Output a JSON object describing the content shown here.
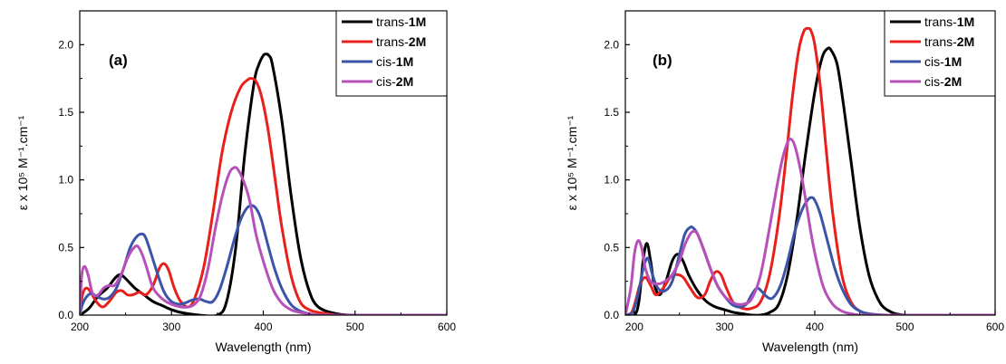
{
  "chart_data": [
    {
      "type": "line",
      "panel_label": "(a)",
      "xlabel": "Wavelength (nm)",
      "ylabel": "ε x 10⁵ M⁻¹.cm⁻¹",
      "xlim": [
        200,
        600
      ],
      "ylim": [
        0,
        2.25
      ],
      "xticks": [
        "200",
        "300",
        "400",
        "500",
        "600"
      ],
      "yticks": [
        "0.0",
        "0.5",
        "1.0",
        "1.5",
        "2.0"
      ],
      "grid": false,
      "legend_position": "top-right",
      "series": [
        {
          "name_prefix": "trans-",
          "name_suffix": "1M",
          "color": "#000000",
          "x": [
            200,
            210,
            220,
            230,
            238,
            244,
            250,
            260,
            270,
            280,
            290,
            300,
            310,
            330,
            350,
            360,
            370,
            380,
            390,
            395,
            400,
            403,
            406,
            410,
            420,
            430,
            440,
            450,
            460,
            480,
            500,
            550,
            600
          ],
          "y": [
            0.0,
            0.05,
            0.14,
            0.2,
            0.27,
            0.3,
            0.27,
            0.2,
            0.15,
            0.1,
            0.07,
            0.04,
            0.02,
            0.0,
            0.0,
            0.1,
            0.5,
            1.2,
            1.72,
            1.85,
            1.92,
            1.93,
            1.92,
            1.85,
            1.45,
            0.9,
            0.45,
            0.18,
            0.06,
            0.01,
            0.0,
            0.0,
            0.0
          ]
        },
        {
          "name_prefix": "trans-",
          "name_suffix": "2M",
          "color": "#e8201c",
          "x": [
            200,
            203,
            207,
            212,
            218,
            225,
            232,
            240,
            246,
            252,
            258,
            265,
            272,
            280,
            287,
            292,
            297,
            303,
            310,
            318,
            325,
            335,
            345,
            355,
            365,
            375,
            383,
            387,
            392,
            398,
            405,
            413,
            420,
            430,
            440,
            450,
            460,
            470,
            480,
            500,
            550,
            600
          ],
          "y": [
            0.0,
            0.15,
            0.2,
            0.17,
            0.1,
            0.06,
            0.1,
            0.17,
            0.18,
            0.15,
            0.15,
            0.17,
            0.15,
            0.22,
            0.35,
            0.38,
            0.33,
            0.2,
            0.1,
            0.06,
            0.12,
            0.35,
            0.75,
            1.2,
            1.5,
            1.68,
            1.74,
            1.75,
            1.73,
            1.62,
            1.38,
            1.0,
            0.66,
            0.3,
            0.1,
            0.04,
            0.02,
            0.01,
            0.0,
            0.0,
            0.0,
            0.0
          ]
        },
        {
          "name_prefix": "cis-",
          "name_suffix": "1M",
          "color": "#3b54a8",
          "x": [
            200,
            203,
            208,
            213,
            218,
            225,
            232,
            240,
            248,
            255,
            262,
            268,
            272,
            278,
            285,
            292,
            300,
            308,
            315,
            322,
            330,
            338,
            345,
            352,
            360,
            368,
            375,
            382,
            388,
            393,
            398,
            405,
            412,
            420,
            430,
            440,
            450,
            460,
            480,
            500,
            550,
            600
          ],
          "y": [
            0.0,
            0.08,
            0.14,
            0.16,
            0.14,
            0.12,
            0.13,
            0.2,
            0.35,
            0.5,
            0.58,
            0.6,
            0.57,
            0.45,
            0.3,
            0.17,
            0.1,
            0.08,
            0.09,
            0.11,
            0.12,
            0.1,
            0.1,
            0.18,
            0.35,
            0.55,
            0.7,
            0.79,
            0.81,
            0.78,
            0.7,
            0.52,
            0.35,
            0.2,
            0.08,
            0.03,
            0.01,
            0.0,
            0.0,
            0.0,
            0.0,
            0.0
          ]
        },
        {
          "name_prefix": "cis-",
          "name_suffix": "2M",
          "color": "#b751b9",
          "x": [
            200,
            202,
            205,
            209,
            214,
            220,
            226,
            232,
            238,
            245,
            252,
            258,
            263,
            268,
            273,
            280,
            290,
            300,
            310,
            318,
            325,
            332,
            340,
            348,
            356,
            363,
            368,
            372,
            378,
            385,
            392,
            400,
            410,
            420,
            430,
            440,
            450,
            460,
            480,
            500,
            550,
            600
          ],
          "y": [
            0.0,
            0.28,
            0.36,
            0.3,
            0.16,
            0.15,
            0.2,
            0.22,
            0.22,
            0.3,
            0.42,
            0.49,
            0.51,
            0.45,
            0.35,
            0.2,
            0.12,
            0.08,
            0.06,
            0.06,
            0.08,
            0.15,
            0.35,
            0.65,
            0.9,
            1.05,
            1.09,
            1.08,
            1.0,
            0.85,
            0.6,
            0.4,
            0.2,
            0.09,
            0.04,
            0.02,
            0.01,
            0.0,
            0.0,
            0.0,
            0.0,
            0.0
          ]
        }
      ]
    },
    {
      "type": "line",
      "panel_label": "(b)",
      "xlabel": "Wavelength (nm)",
      "ylabel": "ε x 10⁵ M⁻¹.cm⁻¹",
      "xlim": [
        190,
        600
      ],
      "ylim": [
        0,
        2.25
      ],
      "xticks": [
        "200",
        "300",
        "400",
        "500",
        "600"
      ],
      "yticks": [
        "0.0",
        "0.5",
        "1.0",
        "1.5",
        "2.0"
      ],
      "grid": false,
      "legend_position": "top-right",
      "series": [
        {
          "name_prefix": "trans-",
          "name_suffix": "1M",
          "color": "#000000",
          "x": [
            190,
            200,
            205,
            210,
            214,
            218,
            222,
            228,
            235,
            242,
            248,
            254,
            260,
            270,
            280,
            290,
            300,
            310,
            320,
            330,
            340,
            350,
            360,
            370,
            380,
            390,
            400,
            408,
            414,
            418,
            425,
            432,
            440,
            450,
            460,
            470,
            480,
            500,
            550,
            600
          ],
          "y": [
            0.0,
            0.0,
            0.1,
            0.42,
            0.53,
            0.4,
            0.23,
            0.15,
            0.25,
            0.4,
            0.45,
            0.4,
            0.3,
            0.18,
            0.1,
            0.06,
            0.04,
            0.02,
            0.01,
            0.0,
            0.0,
            0.02,
            0.08,
            0.3,
            0.7,
            1.2,
            1.65,
            1.9,
            1.97,
            1.96,
            1.85,
            1.55,
            1.15,
            0.65,
            0.3,
            0.12,
            0.04,
            0.0,
            0.0,
            0.0
          ]
        },
        {
          "name_prefix": "trans-",
          "name_suffix": "2M",
          "color": "#e8201c",
          "x": [
            190,
            197,
            202,
            206,
            212,
            218,
            224,
            232,
            240,
            247,
            254,
            262,
            270,
            278,
            284,
            290,
            296,
            302,
            310,
            320,
            330,
            340,
            350,
            360,
            368,
            375,
            382,
            388,
            393,
            396,
            400,
            406,
            413,
            420,
            430,
            440,
            450,
            460,
            470,
            500,
            550,
            600
          ],
          "y": [
            0.0,
            0.02,
            0.12,
            0.22,
            0.28,
            0.22,
            0.15,
            0.2,
            0.28,
            0.3,
            0.28,
            0.2,
            0.13,
            0.15,
            0.25,
            0.32,
            0.3,
            0.2,
            0.09,
            0.05,
            0.05,
            0.1,
            0.3,
            0.7,
            1.15,
            1.6,
            1.95,
            2.1,
            2.12,
            2.1,
            2.0,
            1.7,
            1.2,
            0.75,
            0.3,
            0.1,
            0.03,
            0.01,
            0.0,
            0.0,
            0.0,
            0.0
          ]
        },
        {
          "name_prefix": "cis-",
          "name_suffix": "1M",
          "color": "#3b54a8",
          "x": [
            190,
            198,
            204,
            210,
            215,
            220,
            226,
            234,
            242,
            250,
            256,
            262,
            266,
            270,
            276,
            284,
            292,
            300,
            308,
            316,
            324,
            330,
            336,
            342,
            348,
            354,
            362,
            370,
            378,
            386,
            392,
            396,
            400,
            406,
            414,
            422,
            430,
            440,
            450,
            460,
            480,
            500,
            550,
            600
          ],
          "y": [
            0.0,
            0.02,
            0.15,
            0.35,
            0.42,
            0.3,
            0.2,
            0.18,
            0.25,
            0.45,
            0.6,
            0.65,
            0.64,
            0.6,
            0.5,
            0.35,
            0.22,
            0.14,
            0.08,
            0.06,
            0.08,
            0.15,
            0.2,
            0.17,
            0.13,
            0.13,
            0.22,
            0.4,
            0.62,
            0.78,
            0.85,
            0.87,
            0.85,
            0.75,
            0.55,
            0.35,
            0.2,
            0.08,
            0.03,
            0.01,
            0.0,
            0.0,
            0.0,
            0.0
          ]
        },
        {
          "name_prefix": "cis-",
          "name_suffix": "2M",
          "color": "#b751b9",
          "x": [
            190,
            196,
            200,
            204,
            208,
            212,
            218,
            226,
            234,
            242,
            250,
            256,
            262,
            266,
            270,
            276,
            284,
            292,
            300,
            310,
            320,
            330,
            340,
            350,
            358,
            364,
            370,
            374,
            378,
            384,
            390,
            396,
            402,
            410,
            420,
            430,
            440,
            450,
            460,
            480,
            500,
            550,
            600
          ],
          "y": [
            0.0,
            0.2,
            0.45,
            0.55,
            0.5,
            0.35,
            0.25,
            0.23,
            0.25,
            0.3,
            0.4,
            0.52,
            0.6,
            0.62,
            0.6,
            0.5,
            0.35,
            0.22,
            0.14,
            0.09,
            0.08,
            0.12,
            0.3,
            0.65,
            0.95,
            1.15,
            1.28,
            1.3,
            1.25,
            1.08,
            0.85,
            0.6,
            0.4,
            0.2,
            0.08,
            0.03,
            0.01,
            0.0,
            0.0,
            0.0,
            0.0,
            0.0,
            0.0
          ]
        }
      ]
    }
  ]
}
